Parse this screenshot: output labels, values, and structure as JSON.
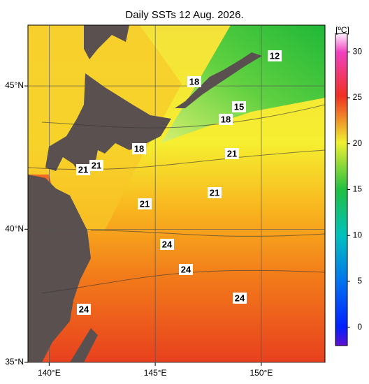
{
  "title": "Daily SSTs 12 Aug. 2026.",
  "map": {
    "lonlim": [
      139,
      153
    ],
    "latlim": [
      35,
      47
    ],
    "lonticks": [
      {
        "value": 140,
        "label": "140°E"
      },
      {
        "value": 145,
        "label": "145°E"
      },
      {
        "value": 150,
        "label": "150°E"
      }
    ],
    "latticks": [
      {
        "value": 35,
        "label": "35°N"
      },
      {
        "value": 40,
        "label": "40°N"
      },
      {
        "value": 45,
        "label": "45°N"
      }
    ],
    "grid": true
  },
  "colorbar": {
    "unit": "[ºC]",
    "lim": [
      -2,
      32
    ],
    "ticks": [
      0,
      5,
      10,
      15,
      20,
      25,
      30
    ]
  },
  "contour_labels": [
    12,
    18,
    15,
    18,
    18,
    21,
    21,
    21,
    21,
    21,
    24,
    24,
    24,
    24
  ]
}
